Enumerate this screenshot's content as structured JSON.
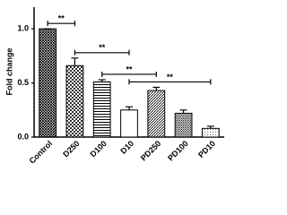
{
  "chart_data": {
    "type": "bar",
    "y_label": "Fold change",
    "categories": [
      "Control",
      "D250",
      "D100",
      "D10",
      "PD250",
      "PD100",
      "PD10"
    ],
    "values": [
      1.0,
      0.66,
      0.51,
      0.25,
      0.43,
      0.22,
      0.08
    ],
    "errors": [
      0.0,
      0.07,
      0.02,
      0.03,
      0.03,
      0.03,
      0.02
    ],
    "ylim": [
      0,
      1.2
    ],
    "yticks": [
      {
        "value": 0,
        "label": "0.0"
      },
      0.5,
      {
        "value": 1,
        "label": "1.0"
      }
    ],
    "annotations": [
      {
        "text": "**",
        "from": 0,
        "to": 1
      },
      {
        "text": "**",
        "from": 1,
        "to": 3
      },
      {
        "text": "**",
        "from": 2,
        "to": 4
      },
      {
        "text": "**",
        "from": 3,
        "to": 6
      }
    ]
  }
}
